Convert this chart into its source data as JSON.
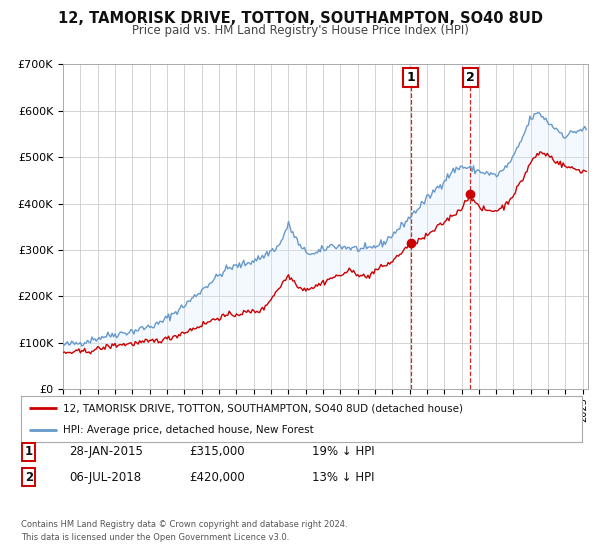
{
  "title": "12, TAMORISK DRIVE, TOTTON, SOUTHAMPTON, SO40 8UD",
  "subtitle": "Price paid vs. HM Land Registry's House Price Index (HPI)",
  "legend_label_red": "12, TAMORISK DRIVE, TOTTON, SOUTHAMPTON, SO40 8UD (detached house)",
  "legend_label_blue": "HPI: Average price, detached house, New Forest",
  "annotation1_date": "28-JAN-2015",
  "annotation1_price": "£315,000",
  "annotation1_hpi": "19% ↓ HPI",
  "annotation2_date": "06-JUL-2018",
  "annotation2_price": "£420,000",
  "annotation2_hpi": "13% ↓ HPI",
  "footer1": "Contains HM Land Registry data © Crown copyright and database right 2024.",
  "footer2": "This data is licensed under the Open Government Licence v3.0.",
  "sale1_date_num": 2015.075,
  "sale1_price": 315000,
  "sale2_date_num": 2018.51,
  "sale2_price": 420000,
  "color_red": "#cc0000",
  "color_blue": "#6699cc",
  "color_shading": "#ddeeff",
  "ylim": [
    0,
    700000
  ],
  "xlim_start": 1995.0,
  "xlim_end": 2025.3,
  "background_color": "#ffffff",
  "grid_color": "#cccccc",
  "yticks": [
    0,
    100000,
    200000,
    300000,
    400000,
    500000,
    600000,
    700000
  ],
  "ylabels": [
    "£0",
    "£100K",
    "£200K",
    "£300K",
    "£400K",
    "£500K",
    "£600K",
    "£700K"
  ]
}
